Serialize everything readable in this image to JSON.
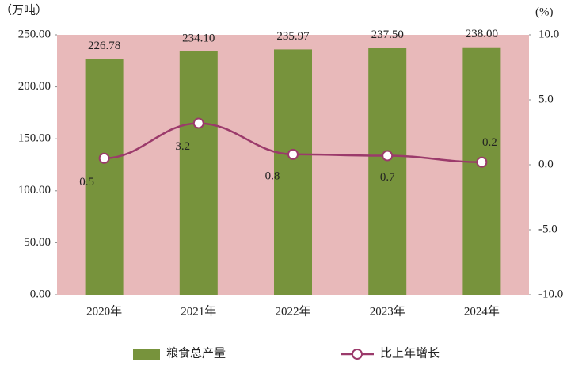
{
  "chart_data": {
    "type": "combo",
    "y_unit_label": "（万吨）",
    "y2_unit_label": "(%)",
    "categories": [
      "2020年",
      "2021年",
      "2022年",
      "2023年",
      "2024年"
    ],
    "series": [
      {
        "name": "粮食总产量",
        "type": "bar",
        "color": "#77933c",
        "axis": "y",
        "values": [
          226.78,
          234.1,
          235.97,
          237.5,
          238.0
        ],
        "value_labels": [
          "226.78",
          "234.10",
          "235.97",
          "237.50",
          "238.00"
        ]
      },
      {
        "name": "比上年增长",
        "type": "line",
        "color": "#9b3a6b",
        "axis": "y2",
        "values": [
          0.5,
          3.2,
          0.8,
          0.7,
          0.2
        ]
      }
    ],
    "ylim": [
      0,
      250
    ],
    "yticks": [
      {
        "value": 0,
        "label": "0.00"
      },
      {
        "value": 50,
        "label": "50.00"
      },
      {
        "value": 100,
        "label": "100.00"
      },
      {
        "value": 150,
        "label": "150.00"
      },
      {
        "value": 200,
        "label": "200.00"
      },
      {
        "value": 250,
        "label": "250.00"
      }
    ],
    "y2lim": [
      -10,
      10
    ],
    "y2ticks": [
      {
        "value": -10,
        "label": "-10.0"
      },
      {
        "value": -5,
        "label": "-5.0"
      },
      {
        "value": 0,
        "label": "0.0"
      },
      {
        "value": 5,
        "label": "5.0"
      },
      {
        "value": 10,
        "label": "10.0"
      }
    ],
    "plot_background": "#e8b9ba"
  }
}
